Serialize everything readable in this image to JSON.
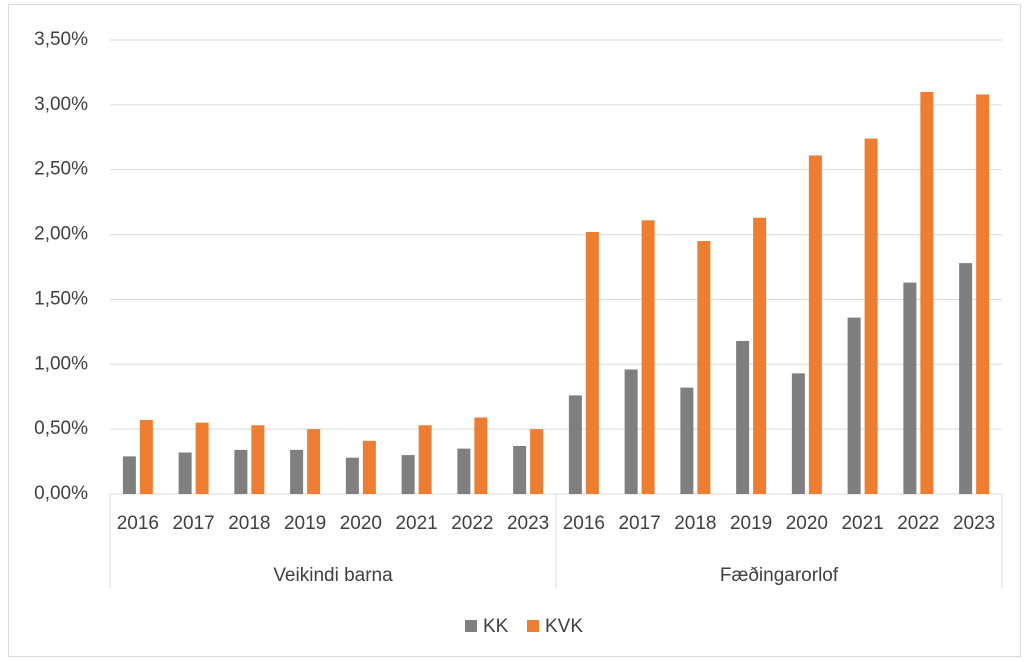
{
  "chart_data": {
    "type": "bar",
    "categories": [
      "2016",
      "2017",
      "2018",
      "2019",
      "2020",
      "2021",
      "2022",
      "2023",
      "2016",
      "2017",
      "2018",
      "2019",
      "2020",
      "2021",
      "2022",
      "2023"
    ],
    "category_groups": [
      "Veikindi barna",
      "Fæðingarorlof"
    ],
    "series": [
      {
        "name": "KK",
        "color": "#7f7f7f",
        "values": [
          0.29,
          0.32,
          0.34,
          0.34,
          0.28,
          0.3,
          0.35,
          0.37,
          0.76,
          0.96,
          0.82,
          1.18,
          0.93,
          1.36,
          1.63,
          1.78
        ]
      },
      {
        "name": "KVK",
        "color": "#ed7d31",
        "values": [
          0.57,
          0.55,
          0.53,
          0.5,
          0.41,
          0.53,
          0.59,
          0.5,
          2.02,
          2.11,
          1.95,
          2.13,
          2.61,
          2.74,
          3.1,
          3.08
        ]
      }
    ],
    "ylim": [
      0,
      3.5
    ],
    "yticks": [
      {
        "value": 0,
        "label": "0,00%"
      },
      {
        "value": 0.5,
        "label": "0,50%"
      },
      {
        "value": 1,
        "label": "1,00%"
      },
      {
        "value": 1.5,
        "label": "1,50%"
      },
      {
        "value": 2,
        "label": "2,00%"
      },
      {
        "value": 2.5,
        "label": "2,50%"
      },
      {
        "value": 3,
        "label": "3,00%"
      },
      {
        "value": 3.5,
        "label": "3,50%"
      }
    ],
    "grid": true,
    "legend": "bottom"
  }
}
